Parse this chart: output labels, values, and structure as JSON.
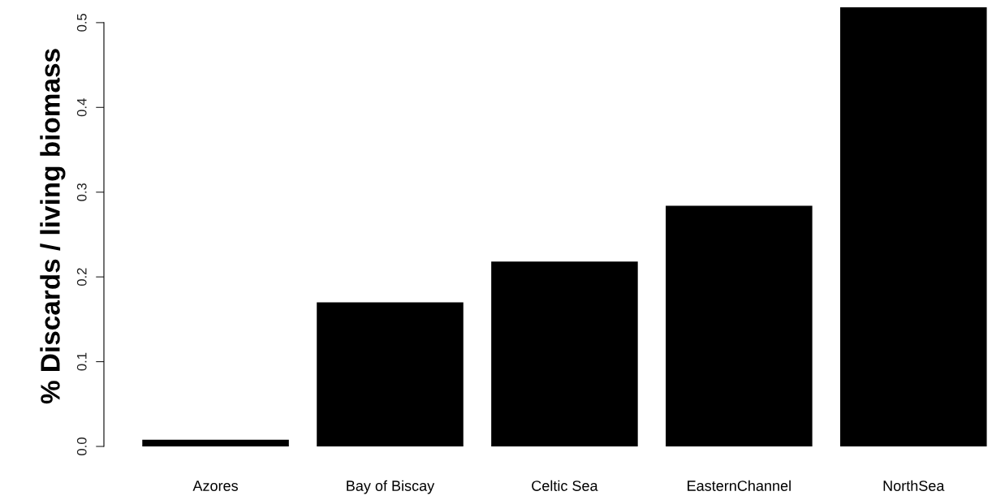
{
  "chart_data": {
    "type": "bar",
    "ylabel": "% Discards / living biomass",
    "categories": [
      "Azores",
      "Bay of Biscay",
      "Celtic Sea",
      "EasternChannel",
      "NorthSea"
    ],
    "values": [
      0.008,
      0.17,
      0.218,
      0.284,
      0.518
    ],
    "color": "#000000",
    "ylim": [
      0,
      0.52
    ],
    "yticks": [
      {
        "value": 0,
        "label": "0.0"
      },
      0.1,
      0.2,
      0.3,
      0.4,
      0.5
    ],
    "grid": false
  }
}
